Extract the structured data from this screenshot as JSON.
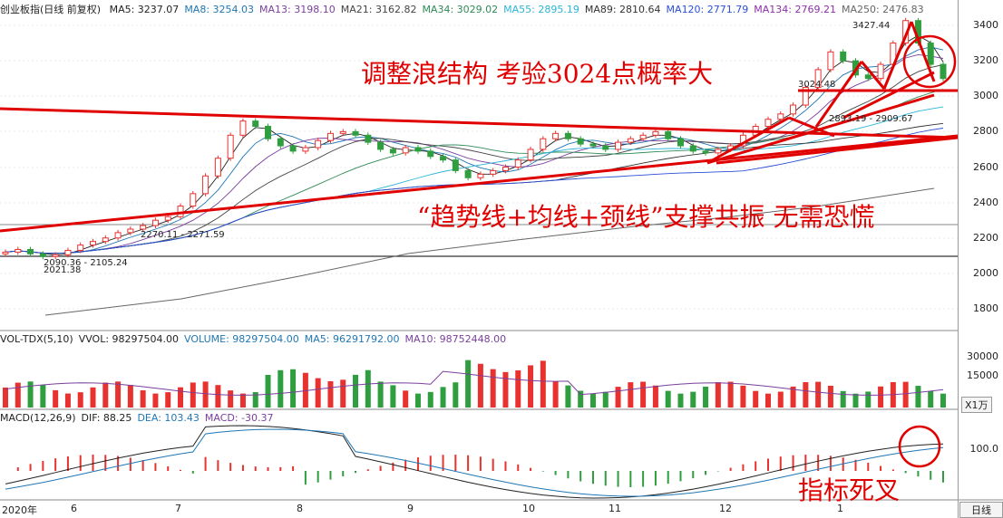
{
  "main_header": {
    "title": "创业板指(日线 前复权)",
    "ma": [
      {
        "label": "MA5: 3237.07",
        "color": "#222222"
      },
      {
        "label": "MA8: 3254.03",
        "color": "#1f77b4"
      },
      {
        "label": "MA13: 3198.10",
        "color": "#7b3f9e"
      },
      {
        "label": "MA21: 3162.82",
        "color": "#444444"
      },
      {
        "label": "MA34: 3029.02",
        "color": "#2e8b57"
      },
      {
        "label": "MA55: 2895.19",
        "color": "#2bb5d6"
      },
      {
        "label": "MA89: 2810.64",
        "color": "#333333"
      },
      {
        "label": "MA120: 2771.79",
        "color": "#2b4fd6"
      },
      {
        "label": "MA134: 2769.21",
        "color": "#8b2fa8"
      },
      {
        "label": "MA250: 2476.83",
        "color": "#666666"
      }
    ]
  },
  "vol_header": [
    {
      "label": "VOL-TDX(5,10)",
      "color": "#222222"
    },
    {
      "label": "VVOL: 98297504.00",
      "color": "#222222"
    },
    {
      "label": "VOLUME: 98297504.00",
      "color": "#1f77b4"
    },
    {
      "label": "MA5: 96291792.00",
      "color": "#1f77b4"
    },
    {
      "label": "MA10: 98752448.00",
      "color": "#7b3f9e"
    }
  ],
  "macd_header": [
    {
      "label": "MACD(12,26,9)",
      "color": "#222222"
    },
    {
      "label": "DIF: 88.25",
      "color": "#222222"
    },
    {
      "label": "DEA: 103.43",
      "color": "#1f77b4"
    },
    {
      "label": "MACD: -30.37",
      "color": "#7b3f9e"
    }
  ],
  "annotations": {
    "top_text": "调整浪结构  考验3024点概率大",
    "mid_text": "“趋势线+均线+颈线”支撑共振  无需恐慌",
    "bottom_text": "指标死叉",
    "price_peak": "3427.44",
    "price_3024": "3024.48",
    "range_2893": "2893.19 - 2909.67",
    "range_2270": "2270.11 - 2271.59",
    "range_2090": "2090.36 - 2105.24",
    "low_2021": "2021.38"
  },
  "axis": {
    "price_ticks": [
      "3400",
      "3200",
      "3000",
      "2800",
      "2600",
      "2400",
      "2200",
      "2000",
      "1800"
    ],
    "vol_ticks": [
      "30000",
      "15000"
    ],
    "vol_unit": "X1万",
    "macd_ticks": [
      "100.0"
    ],
    "x_labels": [
      "2020年",
      "6",
      "7",
      "8",
      "9",
      "10",
      "11",
      "12",
      "1"
    ],
    "corner_label": "日线"
  },
  "chart_data": {
    "type": "candlestick",
    "series_closes": [
      2120,
      2135,
      2110,
      2095,
      2105,
      2130,
      2160,
      2180,
      2200,
      2230,
      2250,
      2270,
      2300,
      2320,
      2380,
      2450,
      2550,
      2650,
      2780,
      2860,
      2830,
      2760,
      2720,
      2690,
      2710,
      2750,
      2790,
      2800,
      2780,
      2740,
      2700,
      2680,
      2710,
      2690,
      2660,
      2640,
      2580,
      2540,
      2560,
      2580,
      2600,
      2640,
      2700,
      2760,
      2790,
      2760,
      2730,
      2720,
      2700,
      2740,
      2760,
      2780,
      2800,
      2760,
      2720,
      2690,
      2680,
      2700,
      2720,
      2780,
      2830,
      2870,
      2900,
      2950,
      3050,
      3150,
      3250,
      3200,
      3120,
      3100,
      3180,
      3300,
      3427,
      3300,
      3180,
      3100
    ],
    "price_range": [
      1700,
      3450
    ],
    "volume_range": [
      0,
      40000
    ],
    "macd_range": [
      -60,
      140
    ],
    "colors": {
      "up": "#e8322f",
      "down": "#2e9e3e",
      "trend": "#e00000"
    }
  }
}
